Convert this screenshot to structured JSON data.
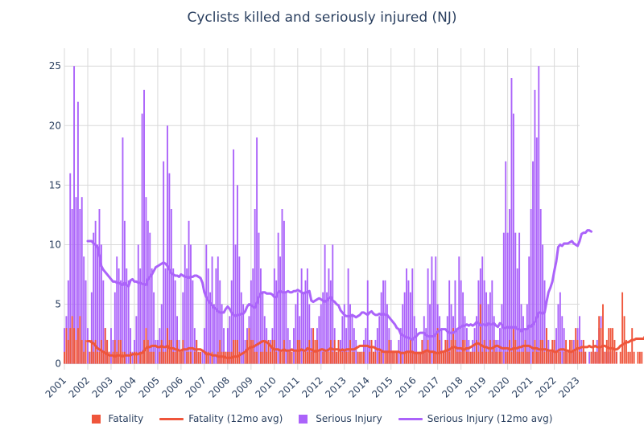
{
  "chart_data": {
    "type": "bar",
    "title": "Cyclists killed and seriously injured (NJ)",
    "xlabel": "",
    "ylabel": "",
    "ylim": [
      -0.5,
      26.5
    ],
    "y_ticks": [
      0,
      5,
      10,
      15,
      20,
      25
    ],
    "x_ticks": [
      "2001",
      "2002",
      "2003",
      "2004",
      "2005",
      "2006",
      "2007",
      "2008",
      "2009",
      "2010",
      "2011",
      "2012",
      "2013",
      "2014",
      "2015",
      "2016",
      "2017",
      "2018",
      "2019",
      "2020",
      "2021",
      "2022",
      "2023"
    ],
    "x_range": [
      "2001-01",
      "2023-02"
    ],
    "start_month": "2001-01",
    "grid": true,
    "legend_position": "bottom",
    "colors": {
      "fatality": "#ef553b",
      "serious_injury": "#ab63fa",
      "grid": "#d9d9d9"
    },
    "series": [
      {
        "name": "Fatality",
        "kind": "bar",
        "values": [
          1,
          3,
          2,
          3,
          4,
          3,
          2,
          3,
          4,
          2,
          1,
          2,
          0,
          1,
          2,
          1,
          2,
          1,
          1,
          2,
          1,
          3,
          2,
          1,
          0,
          1,
          2,
          1,
          2,
          2,
          1,
          1,
          0,
          0,
          1,
          0,
          1,
          1,
          0,
          1,
          1,
          2,
          3,
          2,
          1,
          1,
          1,
          0,
          0,
          1,
          2,
          1,
          1,
          3,
          2,
          2,
          1,
          1,
          2,
          1,
          1,
          2,
          0,
          1,
          1,
          1,
          0,
          1,
          2,
          1,
          1,
          0,
          0,
          1,
          1,
          0,
          1,
          0,
          0,
          1,
          2,
          1,
          1,
          1,
          1,
          1,
          1,
          2,
          2,
          2,
          1,
          0,
          0,
          1,
          2,
          3,
          2,
          2,
          1,
          1,
          0,
          1,
          1,
          2,
          1,
          2,
          1,
          2,
          2,
          1,
          0,
          1,
          1,
          2,
          0,
          1,
          1,
          1,
          0,
          1,
          2,
          2,
          0,
          1,
          1,
          1,
          2,
          1,
          3,
          2,
          2,
          1,
          0,
          1,
          1,
          1,
          1,
          2,
          1,
          2,
          1,
          2,
          1,
          1,
          1,
          1,
          1,
          2,
          1,
          1,
          0,
          1,
          1,
          1,
          1,
          0,
          0,
          1,
          2,
          1,
          1,
          0,
          1,
          1,
          0,
          1,
          1,
          2,
          1,
          1,
          1,
          1,
          0,
          1,
          0,
          1,
          1,
          1,
          2,
          1,
          1,
          1,
          1,
          1,
          2,
          1,
          1,
          2,
          1,
          0,
          1,
          1,
          3,
          2,
          1,
          1,
          2,
          2,
          1,
          2,
          3,
          2,
          1,
          1,
          1,
          2,
          2,
          1,
          1,
          1,
          1,
          1,
          2,
          1,
          5,
          1,
          2,
          1,
          1,
          2,
          1,
          2,
          1,
          1,
          1,
          1,
          0,
          1,
          1,
          2,
          1,
          3,
          2,
          1,
          1,
          1,
          1,
          2,
          1,
          1,
          0,
          1,
          2,
          1,
          1,
          2,
          2,
          1,
          3,
          1,
          1,
          2,
          2,
          1,
          1,
          1,
          0,
          1,
          2,
          1,
          2,
          2,
          1,
          3,
          2,
          1,
          1,
          2,
          1,
          0,
          0,
          1,
          2,
          1,
          1,
          4,
          3,
          5,
          1,
          2,
          3,
          3,
          3,
          2,
          1,
          0,
          1,
          6,
          4,
          2,
          1,
          1,
          3,
          1,
          0,
          1,
          1,
          1
        ]
      },
      {
        "name": "Fatality (12mo avg)",
        "kind": "line",
        "start_index": 12,
        "values": [
          1.9,
          1.9,
          1.8,
          1.7,
          1.5,
          1.3,
          1.2,
          1.1,
          1.0,
          0.9,
          0.8,
          0.7,
          0.7,
          0.7,
          0.6,
          0.7,
          0.7,
          0.7,
          0.6,
          0.7,
          0.7,
          0.7,
          0.7,
          0.8,
          0.8,
          0.8,
          0.8,
          0.9,
          0.9,
          1.1,
          1.3,
          1.4,
          1.4,
          1.5,
          1.5,
          1.5,
          1.4,
          1.4,
          1.5,
          1.4,
          1.4,
          1.5,
          1.3,
          1.3,
          1.3,
          1.2,
          1.2,
          1.1,
          1.1,
          1.2,
          1.2,
          1.2,
          1.3,
          1.3,
          1.3,
          1.2,
          1.2,
          1.2,
          1.2,
          1.1,
          1.0,
          0.8,
          0.8,
          0.8,
          0.7,
          0.7,
          0.7,
          0.6,
          0.6,
          0.6,
          0.6,
          0.5,
          0.5,
          0.5,
          0.5,
          0.6,
          0.6,
          0.6,
          0.7,
          0.8,
          0.9,
          1.0,
          1.2,
          1.3,
          1.4,
          1.4,
          1.5,
          1.6,
          1.7,
          1.8,
          1.9,
          1.9,
          1.8,
          1.7,
          1.5,
          1.3,
          1.2,
          1.2,
          1.2,
          1.1,
          1.1,
          1.2,
          1.1,
          1.1,
          1.1,
          1.2,
          1.1,
          1.1,
          1.1,
          1.1,
          1.2,
          1.1,
          1.1,
          1.3,
          1.2,
          1.2,
          1.1,
          1.0,
          1.1,
          1.1,
          1.2,
          1.2,
          1.1,
          1.1,
          1.2,
          1.3,
          1.2,
          1.2,
          1.2,
          1.2,
          1.1,
          1.2,
          1.1,
          1.2,
          1.2,
          1.2,
          1.2,
          1.2,
          1.3,
          1.4,
          1.5,
          1.5,
          1.5,
          1.5,
          1.5,
          1.4,
          1.4,
          1.4,
          1.3,
          1.2,
          1.2,
          1.1,
          1.0,
          1.0,
          1.0,
          1.0,
          1.0,
          1.0,
          1.0,
          1.0,
          1.0,
          0.9,
          0.9,
          0.9,
          1.0,
          1.0,
          1.0,
          1.0,
          0.9,
          0.9,
          0.9,
          0.9,
          0.9,
          1.0,
          1.1,
          1.1,
          1.0,
          1.0,
          1.0,
          0.9,
          0.9,
          0.9,
          1.0,
          1.0,
          1.1,
          1.1,
          1.2,
          1.3,
          1.4,
          1.4,
          1.3,
          1.3,
          1.3,
          1.2,
          1.2,
          1.3,
          1.3,
          1.4,
          1.5,
          1.6,
          1.7,
          1.7,
          1.6,
          1.5,
          1.4,
          1.4,
          1.3,
          1.3,
          1.3,
          1.4,
          1.5,
          1.5,
          1.4,
          1.3,
          1.3,
          1.3,
          1.3,
          1.2,
          1.2,
          1.3,
          1.3,
          1.3,
          1.4,
          1.4,
          1.5,
          1.5,
          1.5,
          1.5,
          1.4,
          1.3,
          1.3,
          1.3,
          1.2,
          1.2,
          1.2,
          1.2,
          1.2,
          1.1,
          1.1,
          1.1,
          1.0,
          1.0,
          1.1,
          1.2,
          1.2,
          1.2,
          1.1,
          1.1,
          1.0,
          1.0,
          1.1,
          1.2,
          1.3,
          1.3,
          1.4,
          1.4,
          1.4,
          1.4,
          1.5,
          1.4,
          1.4,
          1.5,
          1.4,
          1.4,
          1.4,
          1.5,
          1.5,
          1.4,
          1.3,
          1.3,
          1.3,
          1.2,
          1.2,
          1.3,
          1.5,
          1.6,
          1.7,
          1.8,
          1.8,
          1.9,
          2.0,
          2.0,
          2.1,
          2.1,
          2.1,
          2.1,
          2.1,
          2.4,
          2.6,
          2.5,
          2.3,
          2.1,
          2.1,
          2.0,
          1.8,
          1.6,
          1.5,
          1.5,
          1.6,
          1.6
        ]
      },
      {
        "name": "Serious Injury",
        "kind": "bar",
        "values": [
          3,
          4,
          7,
          16,
          13,
          25,
          14,
          22,
          13,
          14,
          9,
          7,
          3,
          1,
          6,
          11,
          12,
          10,
          13,
          10,
          7,
          3,
          2,
          1,
          3,
          2,
          6,
          9,
          8,
          7,
          19,
          12,
          8,
          7,
          3,
          1,
          2,
          4,
          10,
          8,
          21,
          23,
          14,
          12,
          11,
          8,
          6,
          2,
          2,
          3,
          5,
          17,
          8,
          20,
          16,
          13,
          8,
          7,
          4,
          2,
          1,
          6,
          10,
          8,
          12,
          10,
          7,
          3,
          2,
          1,
          0,
          1,
          3,
          10,
          8,
          6,
          9,
          5,
          8,
          9,
          7,
          5,
          3,
          1,
          3,
          4,
          7,
          18,
          10,
          15,
          9,
          6,
          5,
          2,
          3,
          4,
          7,
          8,
          13,
          19,
          11,
          8,
          6,
          4,
          3,
          1,
          2,
          3,
          8,
          7,
          11,
          9,
          13,
          12,
          6,
          3,
          2,
          1,
          3,
          5,
          6,
          4,
          8,
          6,
          7,
          8,
          5,
          3,
          2,
          1,
          3,
          4,
          5,
          6,
          10,
          6,
          8,
          7,
          10,
          3,
          1,
          1,
          2,
          4,
          5,
          3,
          8,
          5,
          4,
          3,
          2,
          1,
          0,
          1,
          2,
          3,
          7,
          2,
          1,
          1,
          2,
          3,
          4,
          6,
          7,
          7,
          5,
          3,
          2,
          1,
          0,
          1,
          2,
          3,
          5,
          6,
          8,
          7,
          6,
          8,
          4,
          3,
          1,
          1,
          2,
          4,
          3,
          8,
          5,
          9,
          7,
          9,
          5,
          4,
          3,
          1,
          2,
          4,
          7,
          5,
          4,
          7,
          3,
          9,
          7,
          6,
          4,
          3,
          2,
          1,
          2,
          3,
          4,
          7,
          8,
          9,
          7,
          6,
          5,
          6,
          7,
          4,
          2,
          2,
          3,
          5,
          11,
          17,
          11,
          13,
          24,
          21,
          11,
          8,
          11,
          5,
          4,
          3,
          5,
          9,
          13,
          17,
          23,
          19,
          25,
          13,
          10,
          7,
          3,
          2,
          1,
          1,
          2,
          3,
          5,
          6,
          4,
          3,
          1,
          1,
          0,
          1,
          2,
          1,
          3,
          4,
          2,
          1,
          1,
          0,
          1,
          1,
          2,
          1,
          2,
          3,
          4,
          2,
          1,
          1,
          1,
          1,
          0,
          1,
          1
        ]
      },
      {
        "name": "Serious Injury (12mo avg)",
        "kind": "line",
        "start_index": 12,
        "values": [
          10.3,
          10.3,
          10.3,
          10.1,
          10.0,
          9.8,
          9.1,
          8.2,
          7.9,
          7.7,
          7.5,
          7.3,
          7.1,
          6.9,
          6.9,
          6.8,
          6.8,
          6.7,
          6.6,
          6.8,
          6.6,
          6.5,
          7.0,
          7.1,
          6.9,
          6.9,
          6.8,
          6.8,
          6.7,
          6.7,
          6.6,
          7.1,
          7.3,
          7.5,
          7.8,
          8.1,
          8.2,
          8.3,
          8.4,
          8.5,
          8.4,
          8.2,
          7.9,
          7.6,
          7.5,
          7.4,
          7.4,
          7.3,
          7.5,
          7.4,
          7.3,
          7.3,
          7.2,
          7.3,
          7.3,
          7.4,
          7.4,
          7.3,
          7.2,
          6.8,
          6.0,
          5.6,
          5.3,
          5.1,
          4.9,
          4.7,
          4.6,
          4.4,
          4.3,
          4.3,
          4.3,
          4.6,
          4.8,
          4.6,
          4.3,
          4.1,
          4.0,
          4.1,
          4.1,
          4.2,
          4.2,
          4.4,
          4.8,
          5.0,
          4.9,
          4.8,
          4.7,
          5.1,
          5.6,
          5.9,
          6.0,
          6.0,
          5.9,
          5.9,
          5.9,
          5.8,
          5.6,
          5.6,
          6.0,
          6.1,
          6.0,
          6.0,
          6.0,
          6.1,
          6.0,
          6.0,
          6.1,
          6.1,
          6.2,
          6.1,
          6.0,
          5.9,
          6.0,
          6.0,
          6.1,
          5.3,
          5.2,
          5.3,
          5.4,
          5.5,
          5.4,
          5.3,
          5.2,
          5.3,
          5.5,
          5.6,
          5.3,
          5.2,
          5.0,
          4.9,
          4.5,
          4.3,
          4.1,
          4.0,
          4.0,
          4.0,
          4.1,
          4.0,
          3.9,
          4.0,
          4.1,
          4.3,
          4.3,
          4.2,
          4.1,
          4.3,
          4.4,
          4.2,
          4.1,
          4.1,
          4.2,
          4.1,
          4.2,
          4.1,
          4.1,
          3.9,
          3.7,
          3.5,
          3.3,
          3.0,
          2.9,
          2.5,
          2.4,
          2.3,
          2.2,
          2.2,
          2.1,
          2.0,
          2.2,
          2.3,
          2.5,
          2.6,
          2.6,
          2.6,
          2.4,
          2.3,
          2.3,
          2.3,
          2.3,
          2.5,
          2.7,
          2.8,
          2.9,
          2.9,
          2.9,
          2.7,
          2.6,
          2.6,
          2.6,
          2.7,
          2.9,
          3.0,
          3.1,
          3.2,
          3.2,
          3.3,
          3.2,
          3.3,
          3.2,
          3.3,
          3.5,
          3.4,
          3.2,
          3.3,
          3.3,
          3.2,
          3.4,
          3.3,
          3.3,
          3.4,
          3.2,
          3.1,
          3.4,
          3.3,
          3.0,
          3.0,
          3.1,
          3.0,
          3.1,
          3.0,
          3.1,
          2.9,
          2.9,
          2.7,
          2.9,
          2.9,
          2.9,
          3.2,
          3.1,
          3.3,
          3.5,
          3.9,
          4.3,
          4.3,
          4.2,
          4.3,
          5.2,
          6.0,
          6.4,
          6.9,
          7.8,
          8.6,
          9.8,
          10.0,
          9.9,
          10.1,
          10.1,
          10.1,
          10.2,
          10.3,
          10.1,
          10.0,
          9.9,
          10.3,
          10.9,
          11.0,
          11.0,
          11.2,
          11.2,
          11.1
        ]
      }
    ]
  }
}
